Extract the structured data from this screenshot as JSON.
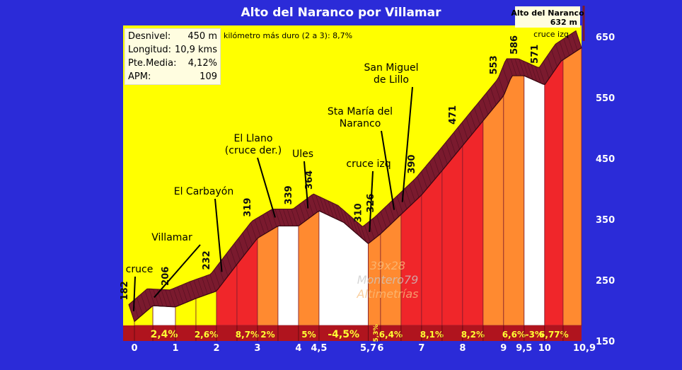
{
  "title": "Alto del Naranco por Villamar",
  "summit": {
    "name": "Alto del Naranco",
    "altitude": "632 m"
  },
  "stats": [
    {
      "label": "Desnivel:",
      "value": "450 m"
    },
    {
      "label": "Longitud:",
      "value": "10,9 kms"
    },
    {
      "label": "Pte.Media:",
      "value": "4,12%"
    },
    {
      "label": "APM:",
      "value": "109"
    }
  ],
  "hardest_km": "kilómetro más duro (2 a 3):  8,7%",
  "watermark": [
    "39x28",
    "Montero79",
    "Altimetrías"
  ],
  "colors": {
    "background": "#2b2bd8",
    "plot": "#ffff00",
    "road": "#7a1a2e",
    "white": "#ffffff",
    "orange": "#ff8a30",
    "red": "#f0262a",
    "darkred": "#b0141e",
    "strip": "#b0141e"
  },
  "chart_data": {
    "type": "area",
    "xlabel": "",
    "ylabel": "",
    "xlim": [
      0,
      10.9
    ],
    "ylim": [
      150,
      650
    ],
    "yticks": [
      150,
      250,
      350,
      450,
      550,
      650
    ],
    "xticks": [
      {
        "x": 0,
        "label": "0"
      },
      {
        "x": 1,
        "label": "1"
      },
      {
        "x": 2,
        "label": "2"
      },
      {
        "x": 3,
        "label": "3"
      },
      {
        "x": 4,
        "label": "4"
      },
      {
        "x": 4.5,
        "label": "4,5"
      },
      {
        "x": 5.7,
        "label": "5,7"
      },
      {
        "x": 6,
        "label": "6"
      },
      {
        "x": 7,
        "label": "7"
      },
      {
        "x": 8,
        "label": "8"
      },
      {
        "x": 9,
        "label": "9"
      },
      {
        "x": 9.5,
        "label": "9,5"
      },
      {
        "x": 10,
        "label": "10"
      },
      {
        "x": 10.9,
        "label": "10,9"
      }
    ],
    "profile": [
      {
        "x": 0,
        "y": 182
      },
      {
        "x": 0.45,
        "y": 208
      },
      {
        "x": 1,
        "y": 206
      },
      {
        "x": 1.5,
        "y": 220
      },
      {
        "x": 2,
        "y": 232
      },
      {
        "x": 2.5,
        "y": 276
      },
      {
        "x": 3,
        "y": 319
      },
      {
        "x": 3.5,
        "y": 339
      },
      {
        "x": 4,
        "y": 339
      },
      {
        "x": 4.5,
        "y": 364
      },
      {
        "x": 5.1,
        "y": 345
      },
      {
        "x": 5.7,
        "y": 310
      },
      {
        "x": 6,
        "y": 326
      },
      {
        "x": 6.5,
        "y": 358
      },
      {
        "x": 7,
        "y": 390
      },
      {
        "x": 7.5,
        "y": 430
      },
      {
        "x": 8,
        "y": 471
      },
      {
        "x": 8.5,
        "y": 512
      },
      {
        "x": 9,
        "y": 553
      },
      {
        "x": 9.2,
        "y": 586
      },
      {
        "x": 9.5,
        "y": 586
      },
      {
        "x": 10,
        "y": 571
      },
      {
        "x": 10.4,
        "y": 610
      },
      {
        "x": 10.9,
        "y": 632
      }
    ],
    "segments": [
      {
        "from": 0,
        "to": 0.45,
        "gradient": "",
        "color": "yellow"
      },
      {
        "from": 0.45,
        "to": 1,
        "gradient": "2,4%",
        "color": "white"
      },
      {
        "from": 1,
        "to": 1.5,
        "gradient": "",
        "color": "yellow"
      },
      {
        "from": 1.5,
        "to": 2,
        "gradient": "2,6%",
        "color": "yellow"
      },
      {
        "from": 2,
        "to": 2.5,
        "gradient": "",
        "color": "red"
      },
      {
        "from": 2.5,
        "to": 3,
        "gradient": "8,7%",
        "color": "red"
      },
      {
        "from": 3,
        "to": 3.5,
        "gradient": "2%",
        "color": "orange"
      },
      {
        "from": 3.5,
        "to": 4,
        "gradient": "",
        "color": "white"
      },
      {
        "from": 4,
        "to": 4.5,
        "gradient": "5%",
        "color": "orange"
      },
      {
        "from": 4.5,
        "to": 5.7,
        "gradient": "-4,5%",
        "color": "white"
      },
      {
        "from": 5.7,
        "to": 6,
        "gradient": "5,3%",
        "color": "orange"
      },
      {
        "from": 6,
        "to": 6.5,
        "gradient": "6,4%",
        "color": "orange"
      },
      {
        "from": 6.5,
        "to": 7,
        "gradient": "",
        "color": "red"
      },
      {
        "from": 7,
        "to": 7.5,
        "gradient": "8,1%",
        "color": "red"
      },
      {
        "from": 7.5,
        "to": 8,
        "gradient": "",
        "color": "red"
      },
      {
        "from": 8,
        "to": 8.5,
        "gradient": "8,2%",
        "color": "red"
      },
      {
        "from": 8.5,
        "to": 9,
        "gradient": "",
        "color": "orange"
      },
      {
        "from": 9,
        "to": 9.5,
        "gradient": "6,6%",
        "color": "orange"
      },
      {
        "from": 9.5,
        "to": 10,
        "gradient": "-3%",
        "color": "white"
      },
      {
        "from": 10,
        "to": 10.45,
        "gradient": "6,77%",
        "color": "red"
      },
      {
        "from": 10.45,
        "to": 10.9,
        "gradient": "",
        "color": "orange"
      }
    ],
    "altitude_labels": [
      {
        "x": 0,
        "y": 182,
        "label": "182"
      },
      {
        "x": 1,
        "y": 206,
        "label": "206"
      },
      {
        "x": 2,
        "y": 232,
        "label": "232"
      },
      {
        "x": 3,
        "y": 319,
        "label": "319"
      },
      {
        "x": 4,
        "y": 339,
        "label": "339"
      },
      {
        "x": 4.5,
        "y": 364,
        "label": "364"
      },
      {
        "x": 5.7,
        "y": 310,
        "label": "310"
      },
      {
        "x": 6,
        "y": 326,
        "label": "326"
      },
      {
        "x": 7,
        "y": 390,
        "label": "390"
      },
      {
        "x": 8,
        "y": 471,
        "label": "471"
      },
      {
        "x": 9,
        "y": 553,
        "label": "553"
      },
      {
        "x": 9.5,
        "y": 586,
        "label": "586"
      },
      {
        "x": 10,
        "y": 571,
        "label": "571"
      }
    ],
    "places": [
      {
        "lines": [
          "cruce"
        ],
        "x": 0.05,
        "y": 182
      },
      {
        "lines": [
          "Villamar"
        ],
        "x": 0.55,
        "y": 208
      },
      {
        "lines": [
          "El Carbayón"
        ],
        "x": 2.2,
        "y": 250
      },
      {
        "lines": [
          "El Llano",
          "(cruce der.)"
        ],
        "x": 3.5,
        "y": 339
      },
      {
        "lines": [
          "Ules"
        ],
        "x": 4.3,
        "y": 356
      },
      {
        "lines": [
          "cruce izq"
        ],
        "x": 5.8,
        "y": 318
      },
      {
        "lines": [
          "Sta María del",
          "Naranco"
        ],
        "x": 6.4,
        "y": 356
      },
      {
        "lines": [
          "San Miguel",
          "de Lillo"
        ],
        "x": 6.6,
        "y": 362
      },
      {
        "lines": [
          "cruce izq"
        ],
        "x": 10.55,
        "y": 618
      }
    ]
  }
}
